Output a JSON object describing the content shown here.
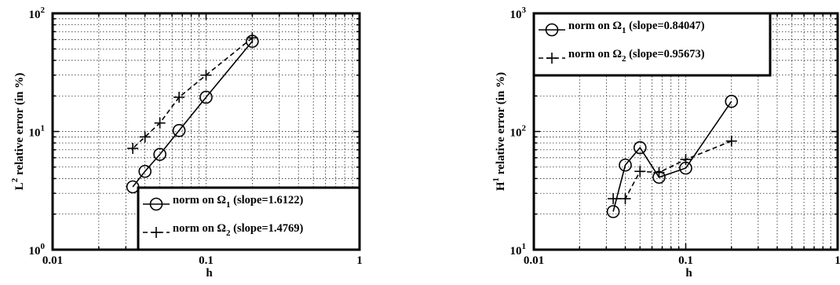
{
  "chart_data": [
    {
      "type": "line",
      "xscale": "log",
      "yscale": "log",
      "xlim": [
        0.01,
        1
      ],
      "ylim": [
        1,
        100
      ],
      "xlabel": "h",
      "ylabel": {
        "base": "L",
        "sup": "2",
        "rest": " relative error (in %)"
      },
      "x_ticks": [
        "0.01",
        "0.1",
        "1"
      ],
      "y_ticks": [
        {
          "value": 1,
          "base": "10",
          "sup": "0"
        },
        {
          "value": 10,
          "base": "10",
          "sup": "1"
        },
        {
          "value": 100,
          "base": "10",
          "sup": "2"
        }
      ],
      "grid": true,
      "legend_placement": "bottom-right",
      "series": [
        {
          "name": "norm on Ω1 (slope=1.6122)",
          "label": {
            "pre": "norm on ",
            "sym": "Ω",
            "sub": "1",
            "post": "  (slope=1.6122)"
          },
          "marker": "circle",
          "dash": "solid",
          "x": [
            0.2,
            0.1,
            0.0667,
            0.05,
            0.04,
            0.0333
          ],
          "y": [
            58,
            19.5,
            10.2,
            6.4,
            4.6,
            3.4
          ]
        },
        {
          "name": "norm on Ω2 (slope=1.4769)",
          "label": {
            "pre": "norm on ",
            "sym": "Ω",
            "sub": "2",
            "post": " (slope=1.4769)"
          },
          "marker": "plus",
          "dash": "dashed",
          "x": [
            0.2,
            0.1,
            0.0667,
            0.05,
            0.04,
            0.0333
          ],
          "y": [
            62,
            30,
            19.5,
            11.8,
            9,
            7.2
          ]
        }
      ]
    },
    {
      "type": "line",
      "xscale": "log",
      "yscale": "log",
      "xlim": [
        0.01,
        1
      ],
      "ylim": [
        10,
        1000
      ],
      "xlabel": "h",
      "ylabel": {
        "base": "H",
        "sup": "1",
        "rest": " relative error (in %)"
      },
      "x_ticks": [
        "0.01",
        "0.1",
        "1"
      ],
      "y_ticks": [
        {
          "value": 10,
          "base": "10",
          "sup": "1"
        },
        {
          "value": 100,
          "base": "10",
          "sup": "2"
        },
        {
          "value": 1000,
          "base": "10",
          "sup": "3"
        }
      ],
      "grid": true,
      "legend_placement": "top-left",
      "series": [
        {
          "name": "norm on Ω1 (slope=0.84047)",
          "label": {
            "pre": "norm on ",
            "sym": "Ω",
            "sub": "1",
            "post": "  (slope=0.84047)"
          },
          "marker": "circle",
          "dash": "solid",
          "x": [
            0.2,
            0.1,
            0.0667,
            0.05,
            0.04,
            0.0333
          ],
          "y": [
            180,
            49,
            41,
            73,
            52,
            21
          ]
        },
        {
          "name": "norm on Ω2 (slope=0.95673)",
          "label": {
            "pre": "norm on ",
            "sym": "Ω",
            "sub": "2",
            "post": " (slope=0.95673)"
          },
          "marker": "plus",
          "dash": "dashed",
          "x": [
            0.2,
            0.1,
            0.0667,
            0.05,
            0.04,
            0.0333
          ],
          "y": [
            83,
            58,
            45,
            46,
            27,
            27
          ]
        }
      ]
    }
  ]
}
